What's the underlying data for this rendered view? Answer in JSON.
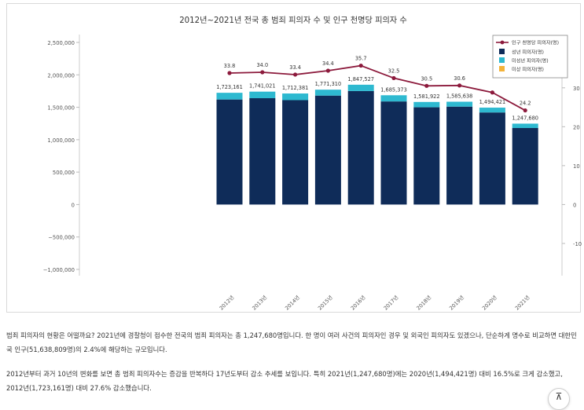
{
  "chart_data": {
    "type": "bar",
    "title": "2012년~2021년 전국 총 범죄 피의자 수 및 인구 천명당 피의자 수",
    "categories": [
      "2012년",
      "2013년",
      "2014년",
      "2015년",
      "2016년",
      "2017년",
      "2018년",
      "2019년",
      "2020년",
      "2021년"
    ],
    "series": [
      {
        "name": "성년 피의자(명)",
        "type": "bar",
        "color": "#0f2c59",
        "values": [
          1620000,
          1640000,
          1610000,
          1680000,
          1750000,
          1590000,
          1500000,
          1510000,
          1420000,
          1180000
        ]
      },
      {
        "name": "미성년 피의자(명)",
        "type": "bar",
        "color": "#2eb9d0",
        "values": [
          103161,
          101021,
          102381,
          91310,
          97527,
          95373,
          81922,
          75638,
          74421,
          67680
        ]
      },
      {
        "name": "미상 피의자(명)",
        "type": "bar",
        "color": "#f4b33a",
        "values": [
          0,
          0,
          0,
          0,
          0,
          0,
          0,
          0,
          0,
          0
        ]
      },
      {
        "name": "인구 천명당 피의자(명)",
        "type": "line",
        "axis": "right",
        "color": "#8c1a3c",
        "values": [
          33.8,
          34.0,
          33.4,
          34.4,
          35.7,
          32.5,
          30.5,
          30.6,
          28.8,
          24.2
        ]
      }
    ],
    "totals": [
      1723161,
      1741021,
      1712381,
      1771310,
      1847527,
      1685373,
      1581922,
      1585638,
      1494421,
      1247680
    ],
    "total_labels": [
      "1,723,161",
      "1,741,021",
      "1,712,381",
      "1,771,310",
      "1,847,527",
      "1,685,373",
      "1,581,922",
      "1,585,638",
      "1,494,421",
      "1,247,680"
    ],
    "line_labels": [
      "33.8",
      "34.0",
      "33.4",
      "34.4",
      "35.7",
      "32.5",
      "30.5",
      "30.6",
      "",
      "24.2"
    ],
    "ylim": [
      -1000000,
      2500000
    ],
    "yticks": [
      2500000,
      2000000,
      1500000,
      1000000,
      500000,
      0,
      -500000,
      -1000000
    ],
    "ytick_labels": [
      "2,500,000",
      "2,000,000",
      "1,500,000",
      "1,000,000",
      "500,000",
      "0",
      "−500,000",
      "−1,000,000"
    ],
    "y2lim": [
      -16.67,
      41.67
    ],
    "y2ticks": [
      30,
      20,
      10,
      0,
      -10
    ],
    "y2tick_labels": [
      "30",
      "20",
      "10",
      "0",
      "-10"
    ],
    "legend_position": "top-right",
    "grid": false
  },
  "text": {
    "para1": "범죄 피의자의 현황은 어떨까요? 2021년에 경찰청이 접수한 전국의 범죄 피의자는 총 1,247,680명입니다. 한 명이 여러 사건의 피의자인 경우 및 외국인 피의자도 있겠으나, 단순하게 명수로 비교하면 대한민국 인구(51,638,809명)의 2.4%에 해당하는 규모입니다.",
    "para2": "2012년부터 과거 10년의 변화를 보면 총 범죄 피의자수는 증감을 반복하다 17년도부터 감소 추세를 보입니다. 특히 2021년(1,247,680명)에는 2020년(1,494,421명) 대비 16.5%로 크게 감소했고, 2012년(1,723,161명) 대비 27.6% 감소했습니다.",
    "top_button": "Top"
  }
}
